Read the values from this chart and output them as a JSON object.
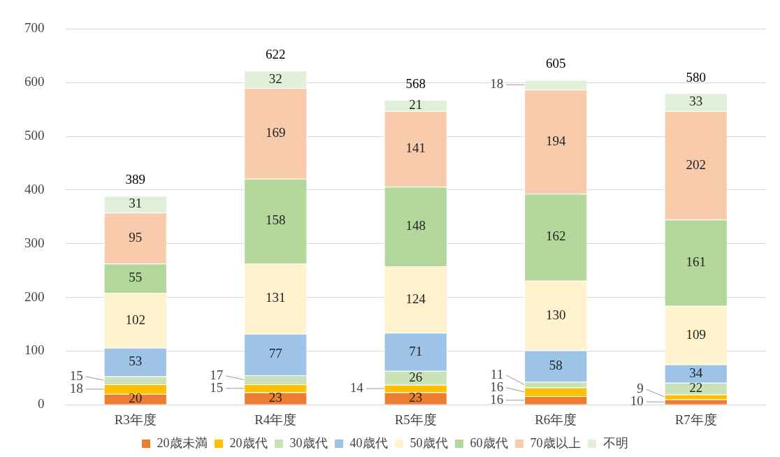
{
  "chart_data": {
    "type": "bar",
    "stacked": true,
    "categories": [
      "R3年度",
      "R4年度",
      "R5年度",
      "R6年度",
      "R7年度"
    ],
    "series": [
      {
        "name": "20歳未満",
        "color": "#ed7d31",
        "values": [
          20,
          23,
          23,
          16,
          10
        ]
      },
      {
        "name": "20歳代",
        "color": "#ffc000",
        "values": [
          18,
          15,
          14,
          16,
          9
        ]
      },
      {
        "name": "30歳代",
        "color": "#c9e2b8",
        "values": [
          15,
          17,
          26,
          11,
          22
        ]
      },
      {
        "name": "40歳代",
        "color": "#9dc3e6",
        "values": [
          53,
          77,
          71,
          58,
          34
        ]
      },
      {
        "name": "50歳代",
        "color": "#fff2cc",
        "values": [
          102,
          131,
          124,
          130,
          109
        ]
      },
      {
        "name": "60歳代",
        "color": "#b4d89c",
        "values": [
          55,
          158,
          148,
          162,
          161
        ]
      },
      {
        "name": "70歳以上",
        "color": "#f8cbad",
        "values": [
          95,
          169,
          141,
          194,
          202
        ]
      },
      {
        "name": "不明",
        "color": "#e2f0d9",
        "values": [
          31,
          32,
          21,
          18,
          33
        ]
      }
    ],
    "totals": [
      "389",
      "622",
      "568",
      "605",
      "580"
    ],
    "data_labels": true,
    "ylim": [
      0,
      700
    ],
    "yticks": [
      0,
      100,
      200,
      300,
      400,
      500,
      600,
      700
    ],
    "grid": "y",
    "legend": "bottom"
  }
}
